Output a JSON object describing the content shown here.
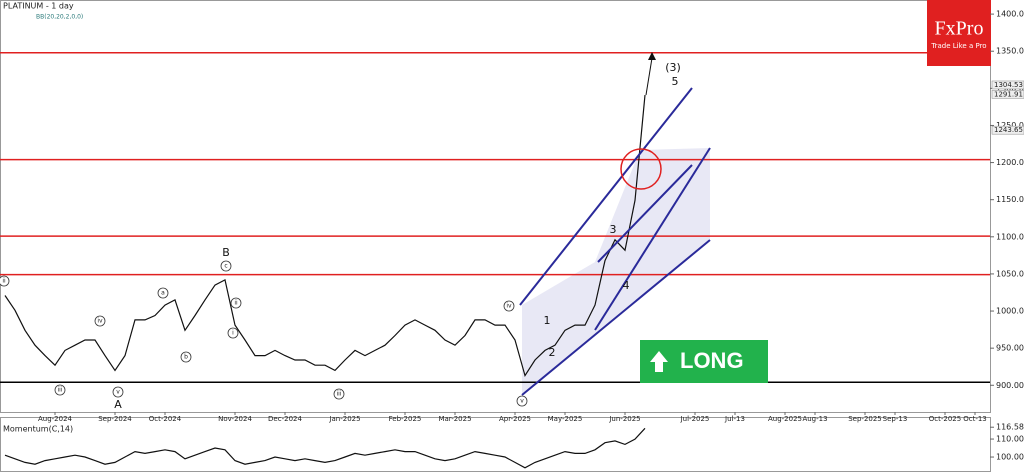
{
  "chart_data": [
    {
      "type": "line",
      "title": "PLATINUM - 1 day",
      "indicator": "BB(20,20,2,0,0)",
      "categories": [
        null,
        null,
        null,
        null,
        null,
        "Aug-2024",
        null,
        null,
        null,
        null,
        null,
        "Sep-2024",
        null,
        null,
        null,
        null,
        "Oct-2024",
        null,
        null,
        null,
        null,
        null,
        null,
        "Nov-2024",
        null,
        null,
        null,
        null,
        "Dec-2024",
        null,
        null,
        null,
        null,
        null,
        "Jan-2025",
        null,
        null,
        null,
        null,
        null,
        "Feb-2025",
        null,
        null,
        null,
        null,
        "Mar-2025",
        null,
        null,
        null,
        null,
        null,
        "Apr-2025",
        null,
        null,
        null,
        null,
        "May-2025",
        null,
        null,
        null,
        null,
        null,
        "Jun-2025",
        null,
        null,
        null,
        null,
        null,
        null,
        "Jul-2025",
        null,
        null,
        null,
        "Jul-13",
        null,
        null,
        null,
        null,
        "Aug-2025",
        null,
        null,
        "Aug-13",
        null,
        null,
        null,
        null,
        "Sep-2025",
        null,
        null,
        "Sep-13",
        null,
        null,
        null,
        null,
        "Oct-2025",
        null,
        null,
        "Oct-13",
        null
      ],
      "series": [
        {
          "name": "PLATINUM",
          "color": "#111111",
          "values": [
            1021,
            1001,
            974,
            954,
            940,
            927,
            947,
            954,
            961,
            961,
            940,
            920,
            940,
            988,
            988,
            994,
            1008,
            1015,
            974,
            994,
            1015,
            1035,
            1042,
            981,
            961,
            940,
            940,
            947,
            940,
            934,
            934,
            927,
            927,
            920,
            934,
            947,
            940,
            947,
            954,
            967,
            981,
            988,
            981,
            974,
            961,
            954,
            967,
            988,
            988,
            981,
            981,
            961,
            913,
            934,
            947,
            954,
            974,
            981,
            981,
            1008,
            1068,
            1096,
            1082,
            1149,
            1291,
            null,
            null,
            null,
            null,
            null,
            null,
            null,
            null,
            null,
            null,
            null,
            null,
            null,
            null,
            null,
            null,
            null,
            null,
            null,
            null,
            null,
            null,
            null,
            null,
            null,
            null,
            null,
            null,
            null,
            null,
            null,
            null,
            null,
            null
          ]
        }
      ],
      "ylim": [
        864,
        1419
      ],
      "yticks": [
        {
          "value": 900,
          "label": "900.00"
        },
        {
          "value": 950,
          "label": "950.00"
        },
        {
          "value": 1000,
          "label": "1000.00"
        },
        {
          "value": 1050,
          "label": "1050.00"
        },
        {
          "value": 1100,
          "label": "1100.00"
        },
        {
          "value": 1150,
          "label": "1150.00"
        },
        {
          "value": 1200,
          "label": "1200.00"
        },
        {
          "value": 1250,
          "label": "1250.00"
        },
        {
          "value": 1300,
          "label": "1300.00"
        },
        {
          "value": 1350,
          "label": "1350.00"
        },
        {
          "value": 1400,
          "label": "1400.00"
        }
      ],
      "price_labels": [
        {
          "value": 1304.53,
          "label": "1304.53"
        },
        {
          "value": 1291.91,
          "label": "1291.91"
        },
        {
          "value": 1243.65,
          "label": "1243.65"
        }
      ],
      "levels": [
        {
          "value": 1348,
          "color": "#e02020"
        },
        {
          "value": 1204,
          "color": "#e02020"
        },
        {
          "value": 1101,
          "color": "#e02020"
        },
        {
          "value": 1049,
          "color": "#e02020"
        },
        {
          "value": 904,
          "color": "#000000"
        }
      ]
    },
    {
      "type": "line",
      "title": "Momentum(C,14)",
      "color": "#111111",
      "values": [
        101,
        99,
        97,
        96,
        98,
        99,
        100,
        101,
        100,
        98,
        96,
        97,
        100,
        103,
        102,
        103,
        104,
        103,
        99,
        101,
        103,
        105,
        104,
        98,
        96,
        97,
        98,
        100,
        99,
        98,
        99,
        98,
        97,
        98,
        100,
        102,
        101,
        102,
        103,
        104,
        103,
        103,
        101,
        99,
        98,
        99,
        101,
        103,
        102,
        101,
        100,
        97,
        94,
        97,
        99,
        101,
        103,
        102,
        102,
        104,
        108,
        109,
        107,
        110,
        116
      ],
      "ylim": [
        92.8,
        121.7
      ],
      "yticks": [
        {
          "value": 116.58,
          "label": "116.58"
        },
        {
          "value": 110,
          "label": "110.00"
        },
        {
          "value": 100,
          "label": "100.00"
        }
      ]
    }
  ],
  "annotations": [
    "ii",
    "iii",
    "iv",
    "v",
    "A",
    "a",
    "b",
    "c",
    "B",
    "ii",
    "i",
    "iii",
    "iv",
    "v",
    "1",
    "2",
    "3",
    "4",
    "(3)",
    "5"
  ],
  "signal": "LONG",
  "logo": {
    "name": "FxPro",
    "slogan": "Trade Like a Pro"
  }
}
